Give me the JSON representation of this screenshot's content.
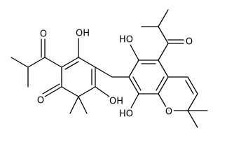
{
  "atoms": {
    "labels": [
      "OH",
      "O",
      "O",
      "OH",
      "HO",
      "HO",
      "O",
      "O"
    ]
  }
}
